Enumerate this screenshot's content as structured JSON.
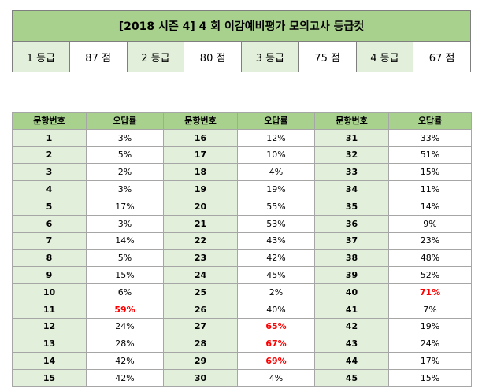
{
  "title": "[2018  시즌 4]  4 회  이감예비평가  모의고사  등급컷",
  "grade_cuts": [
    {
      "grade": "1 등급",
      "cut": "87 점"
    },
    {
      "grade": "2 등급",
      "cut": "80 점"
    },
    {
      "grade": "3 등급",
      "cut": "75 점"
    },
    {
      "grade": "4 등급",
      "cut": "67 점"
    }
  ],
  "headers": {
    "number": "문항번호",
    "rate": "오답률"
  },
  "highlight_color": "#ff0000",
  "questions": [
    {
      "n": "1",
      "r": "3%"
    },
    {
      "n": "2",
      "r": "5%"
    },
    {
      "n": "3",
      "r": "2%"
    },
    {
      "n": "4",
      "r": "3%"
    },
    {
      "n": "5",
      "r": "17%"
    },
    {
      "n": "6",
      "r": "3%"
    },
    {
      "n": "7",
      "r": "14%"
    },
    {
      "n": "8",
      "r": "5%"
    },
    {
      "n": "9",
      "r": "15%"
    },
    {
      "n": "10",
      "r": "6%"
    },
    {
      "n": "11",
      "r": "59%",
      "hot": true
    },
    {
      "n": "12",
      "r": "24%"
    },
    {
      "n": "13",
      "r": "28%"
    },
    {
      "n": "14",
      "r": "42%"
    },
    {
      "n": "15",
      "r": "42%"
    },
    {
      "n": "16",
      "r": "12%"
    },
    {
      "n": "17",
      "r": "10%"
    },
    {
      "n": "18",
      "r": "4%"
    },
    {
      "n": "19",
      "r": "19%"
    },
    {
      "n": "20",
      "r": "55%"
    },
    {
      "n": "21",
      "r": "53%"
    },
    {
      "n": "22",
      "r": "43%"
    },
    {
      "n": "23",
      "r": "42%"
    },
    {
      "n": "24",
      "r": "45%"
    },
    {
      "n": "25",
      "r": "2%"
    },
    {
      "n": "26",
      "r": "40%"
    },
    {
      "n": "27",
      "r": "65%",
      "hot": true
    },
    {
      "n": "28",
      "r": "67%",
      "hot": true
    },
    {
      "n": "29",
      "r": "69%",
      "hot": true
    },
    {
      "n": "30",
      "r": "4%"
    },
    {
      "n": "31",
      "r": "33%"
    },
    {
      "n": "32",
      "r": "51%"
    },
    {
      "n": "33",
      "r": "15%"
    },
    {
      "n": "34",
      "r": "11%"
    },
    {
      "n": "35",
      "r": "14%"
    },
    {
      "n": "36",
      "r": "9%"
    },
    {
      "n": "37",
      "r": "23%"
    },
    {
      "n": "38",
      "r": "48%"
    },
    {
      "n": "39",
      "r": "52%"
    },
    {
      "n": "40",
      "r": "71%",
      "hot": true
    },
    {
      "n": "41",
      "r": "7%"
    },
    {
      "n": "42",
      "r": "19%"
    },
    {
      "n": "43",
      "r": "24%"
    },
    {
      "n": "44",
      "r": "17%"
    },
    {
      "n": "45",
      "r": "15%"
    }
  ]
}
